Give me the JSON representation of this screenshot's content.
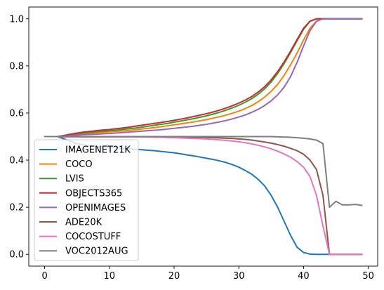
{
  "chart_data": {
    "type": "line",
    "title": "",
    "xlabel": "",
    "ylabel": "",
    "xlim": [
      -2.45,
      51.45
    ],
    "ylim": [
      -0.05,
      1.05
    ],
    "xticks": [
      0,
      10,
      20,
      30,
      40,
      50
    ],
    "yticks": [
      0.0,
      0.2,
      0.4,
      0.6,
      0.8,
      1.0
    ],
    "xtick_labels": [
      "0",
      "10",
      "20",
      "30",
      "40",
      "50"
    ],
    "ytick_labels": [
      "0.0",
      "0.2",
      "0.4",
      "0.6",
      "0.8",
      "1.0"
    ],
    "grid": false,
    "legend_position": "lower-left",
    "x": [
      0,
      1,
      2,
      3,
      4,
      5,
      6,
      7,
      8,
      9,
      10,
      11,
      12,
      13,
      14,
      15,
      16,
      17,
      18,
      19,
      20,
      21,
      22,
      23,
      24,
      25,
      26,
      27,
      28,
      29,
      30,
      31,
      32,
      33,
      34,
      35,
      36,
      37,
      38,
      39,
      40,
      41,
      42,
      43,
      44,
      45,
      46,
      47,
      48,
      49
    ],
    "series": [
      {
        "name": "IMAGENET21K",
        "color": "#1f77b4",
        "values": [
          0.5,
          0.5,
          0.5,
          0.49,
          0.48,
          0.47,
          0.465,
          0.46,
          0.458,
          0.456,
          0.455,
          0.453,
          0.45,
          0.448,
          0.446,
          0.444,
          0.442,
          0.44,
          0.437,
          0.434,
          0.431,
          0.427,
          0.422,
          0.418,
          0.413,
          0.408,
          0.403,
          0.397,
          0.39,
          0.381,
          0.37,
          0.356,
          0.34,
          0.318,
          0.29,
          0.25,
          0.2,
          0.14,
          0.08,
          0.03,
          0.008,
          0.001,
          0.0,
          0.0,
          0.0,
          0.0,
          0.0,
          0.0,
          0.0,
          0.0
        ]
      },
      {
        "name": "COCO",
        "color": "#ff7f0e",
        "values": [
          0.5,
          0.5,
          0.5,
          0.503,
          0.506,
          0.509,
          0.512,
          0.514,
          0.516,
          0.518,
          0.52,
          0.522,
          0.524,
          0.526,
          0.529,
          0.532,
          0.535,
          0.538,
          0.542,
          0.546,
          0.55,
          0.554,
          0.558,
          0.562,
          0.567,
          0.572,
          0.578,
          0.584,
          0.591,
          0.599,
          0.608,
          0.619,
          0.632,
          0.648,
          0.668,
          0.692,
          0.722,
          0.76,
          0.805,
          0.855,
          0.91,
          0.96,
          0.99,
          1.0,
          1.0,
          1.0,
          1.0,
          1.0,
          1.0,
          1.0
        ]
      },
      {
        "name": "LVIS",
        "color": "#2ca02c",
        "values": [
          0.5,
          0.5,
          0.5,
          0.504,
          0.508,
          0.512,
          0.515,
          0.518,
          0.521,
          0.523,
          0.525,
          0.527,
          0.53,
          0.533,
          0.536,
          0.54,
          0.544,
          0.548,
          0.552,
          0.556,
          0.561,
          0.566,
          0.571,
          0.576,
          0.582,
          0.588,
          0.595,
          0.603,
          0.612,
          0.622,
          0.633,
          0.646,
          0.661,
          0.68,
          0.703,
          0.732,
          0.768,
          0.81,
          0.857,
          0.907,
          0.955,
          0.99,
          1.0,
          1.0,
          1.0,
          1.0,
          1.0,
          1.0,
          1.0,
          1.0
        ]
      },
      {
        "name": "OBJECTS365",
        "color": "#d62728",
        "values": [
          0.5,
          0.5,
          0.5,
          0.505,
          0.51,
          0.515,
          0.519,
          0.522,
          0.525,
          0.528,
          0.53,
          0.533,
          0.536,
          0.54,
          0.544,
          0.548,
          0.552,
          0.556,
          0.56,
          0.564,
          0.569,
          0.574,
          0.579,
          0.585,
          0.591,
          0.597,
          0.604,
          0.612,
          0.621,
          0.631,
          0.642,
          0.655,
          0.67,
          0.689,
          0.712,
          0.741,
          0.776,
          0.817,
          0.863,
          0.912,
          0.96,
          0.99,
          1.0,
          1.0,
          1.0,
          1.0,
          1.0,
          1.0,
          1.0,
          1.0
        ]
      },
      {
        "name": "OPENIMAGES",
        "color": "#9467bd",
        "values": [
          0.5,
          0.5,
          0.5,
          0.502,
          0.504,
          0.506,
          0.508,
          0.509,
          0.51,
          0.512,
          0.513,
          0.515,
          0.517,
          0.519,
          0.521,
          0.523,
          0.525,
          0.527,
          0.529,
          0.532,
          0.535,
          0.538,
          0.541,
          0.544,
          0.548,
          0.552,
          0.557,
          0.562,
          0.568,
          0.575,
          0.583,
          0.592,
          0.603,
          0.616,
          0.632,
          0.652,
          0.677,
          0.71,
          0.755,
          0.815,
          0.885,
          0.95,
          0.99,
          1.0,
          1.0,
          1.0,
          1.0,
          1.0,
          1.0,
          1.0
        ]
      },
      {
        "name": "ADE20K",
        "color": "#8c564b",
        "values": [
          0.5,
          0.5,
          0.5,
          0.499,
          0.499,
          0.499,
          0.499,
          0.499,
          0.499,
          0.499,
          0.499,
          0.499,
          0.499,
          0.499,
          0.499,
          0.499,
          0.499,
          0.499,
          0.499,
          0.499,
          0.499,
          0.498,
          0.498,
          0.497,
          0.497,
          0.496,
          0.495,
          0.494,
          0.493,
          0.492,
          0.49,
          0.488,
          0.485,
          0.481,
          0.477,
          0.472,
          0.466,
          0.459,
          0.45,
          0.44,
          0.425,
          0.4,
          0.36,
          0.25,
          0.0,
          0.0,
          0.0,
          0.0,
          0.0,
          0.0
        ]
      },
      {
        "name": "COCOSTUFF",
        "color": "#e377c2",
        "values": [
          0.5,
          0.5,
          0.5,
          0.499,
          0.499,
          0.499,
          0.499,
          0.499,
          0.499,
          0.499,
          0.499,
          0.499,
          0.499,
          0.499,
          0.499,
          0.498,
          0.498,
          0.497,
          0.497,
          0.496,
          0.495,
          0.494,
          0.493,
          0.492,
          0.491,
          0.49,
          0.488,
          0.486,
          0.484,
          0.481,
          0.478,
          0.474,
          0.469,
          0.463,
          0.456,
          0.448,
          0.438,
          0.426,
          0.412,
          0.394,
          0.37,
          0.33,
          0.25,
          0.12,
          0.0,
          0.0,
          0.0,
          0.0,
          0.0,
          0.0
        ]
      },
      {
        "name": "VOC2012AUG",
        "color": "#7f7f7f",
        "values": [
          0.5,
          0.5,
          0.5,
          0.5,
          0.5,
          0.5,
          0.5,
          0.5,
          0.5,
          0.5,
          0.5,
          0.5,
          0.5,
          0.5,
          0.5,
          0.5,
          0.5,
          0.5,
          0.5,
          0.5,
          0.5,
          0.5,
          0.5,
          0.5,
          0.5,
          0.5,
          0.5,
          0.5,
          0.5,
          0.5,
          0.5,
          0.5,
          0.5,
          0.5,
          0.5,
          0.5,
          0.499,
          0.498,
          0.497,
          0.495,
          0.493,
          0.49,
          0.485,
          0.47,
          0.2,
          0.225,
          0.21,
          0.21,
          0.212,
          0.208
        ]
      }
    ]
  }
}
